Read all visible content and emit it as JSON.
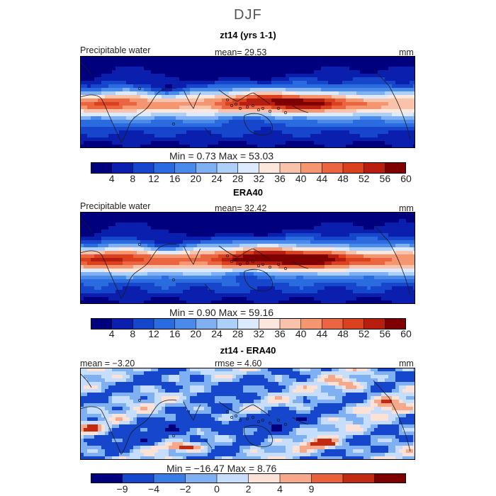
{
  "title": "DJF",
  "panels": [
    {
      "title": "zt14 (yrs 1-1)",
      "variable": "Precipitable water",
      "left_stat": "",
      "mean_text": "mean=   29.53",
      "units": "mm",
      "minmax": "Min =    0.73  Max =   53.03",
      "colorbar_ticks": [
        "4",
        "8",
        "12",
        "16",
        "20",
        "24",
        "28",
        "32",
        "36",
        "40",
        "44",
        "48",
        "52",
        "56",
        "60"
      ]
    },
    {
      "title": "ERA40",
      "variable": "Precipitable water",
      "left_stat": "",
      "mean_text": "mean=   32.42",
      "units": "mm",
      "minmax": "Min =    0.90  Max =   59.16",
      "colorbar_ticks": [
        "4",
        "8",
        "12",
        "16",
        "20",
        "24",
        "28",
        "32",
        "36",
        "40",
        "44",
        "48",
        "52",
        "56",
        "60"
      ]
    },
    {
      "title": "zt14 - ERA40",
      "variable": "",
      "left_stat": "mean =  −3.20",
      "mean_text": "rmse =    4.60",
      "units": "mm",
      "minmax": "Min = −16.47  Max =    8.76",
      "colorbar_ticks": [
        "−9",
        "−4",
        "−2",
        "0",
        "2",
        "4",
        "9"
      ]
    }
  ],
  "colors": {
    "abs_scale": [
      "#00007f",
      "#0a1fae",
      "#1546cc",
      "#2a6ce0",
      "#4a8aeb",
      "#7fb0f2",
      "#acd0f8",
      "#dbeaff",
      "#fde6dc",
      "#f9c3ab",
      "#f4966f",
      "#ea6540",
      "#d9411f",
      "#b71e10",
      "#7f0000"
    ],
    "diff_scale": [
      "#00007f",
      "#1546cc",
      "#3a7ce6",
      "#7fb0f2",
      "#c6defb",
      "#fce2d6",
      "#f5a98a",
      "#e8603c",
      "#c22a12",
      "#7f0000"
    ]
  },
  "chart_data": [
    {
      "type": "heatmap",
      "title": "zt14 (yrs 1-1)",
      "field": "Precipitable water",
      "units": "mm",
      "mean": 29.53,
      "min": 0.73,
      "max": 53.03,
      "colorbar_levels": [
        4,
        8,
        12,
        16,
        20,
        24,
        28,
        32,
        36,
        40,
        44,
        48,
        52,
        56,
        60
      ]
    },
    {
      "type": "heatmap",
      "title": "ERA40",
      "field": "Precipitable water",
      "units": "mm",
      "mean": 32.42,
      "min": 0.9,
      "max": 59.16,
      "colorbar_levels": [
        4,
        8,
        12,
        16,
        20,
        24,
        28,
        32,
        36,
        40,
        44,
        48,
        52,
        56,
        60
      ]
    },
    {
      "type": "heatmap",
      "title": "zt14 - ERA40",
      "units": "mm",
      "mean": -3.2,
      "rmse": 4.6,
      "min": -16.47,
      "max": 8.76,
      "colorbar_levels": [
        -9,
        -4,
        -2,
        0,
        2,
        4,
        9
      ]
    }
  ]
}
